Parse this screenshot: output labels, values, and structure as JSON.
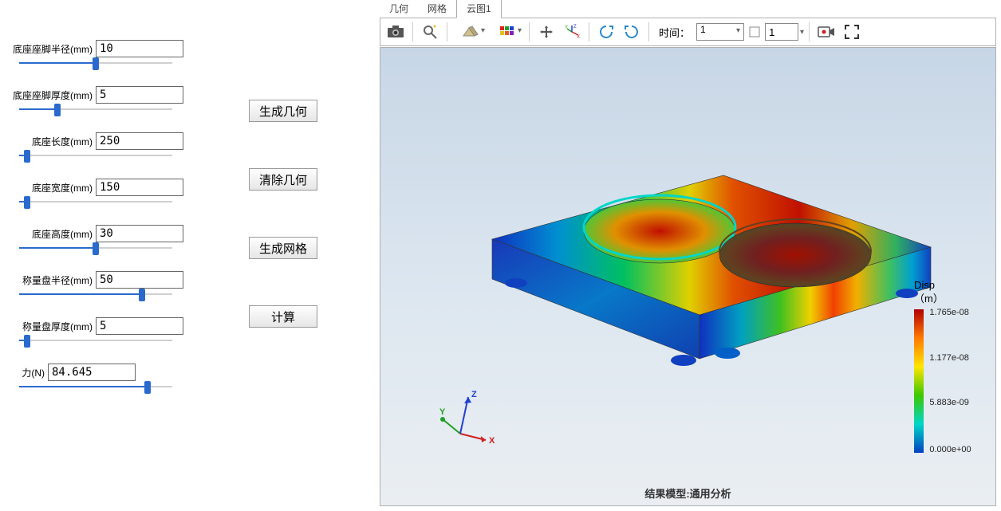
{
  "params": [
    {
      "label": "底座座脚半径(mm)",
      "value": "10",
      "slider_pct": 50
    },
    {
      "label": "底座座脚厚度(mm)",
      "value": "5",
      "slider_pct": 25
    },
    {
      "label": "底座长度(mm)",
      "value": "250",
      "slider_pct": 5
    },
    {
      "label": "底座宽度(mm)",
      "value": "150",
      "slider_pct": 5
    },
    {
      "label": "底座高度(mm)",
      "value": "30",
      "slider_pct": 50
    },
    {
      "label": "称量盘半径(mm)",
      "value": "50",
      "slider_pct": 80
    },
    {
      "label": "称量盘厚度(mm)",
      "value": "5",
      "slider_pct": 5
    },
    {
      "label": "力(N)",
      "value": "84.645",
      "slider_pct": 84
    }
  ],
  "force_label_offset": -60,
  "buttons": {
    "gen_geom": "生成几何",
    "clear_geom": "清除几何",
    "gen_mesh": "生成网格",
    "compute": "计算"
  },
  "tabs": {
    "geom": "几何",
    "mesh": "网格",
    "contour": "云图1"
  },
  "toolbar": {
    "time_label": "时间：",
    "time_value": "1",
    "frame_value": "1"
  },
  "legend": {
    "title1": "Disp",
    "title2": "（m）",
    "ticks": [
      {
        "pos": 0,
        "text": "1.765e-08"
      },
      {
        "pos": 33,
        "text": "1.177e-08"
      },
      {
        "pos": 66,
        "text": "5.883e-09"
      },
      {
        "pos": 100,
        "text": "0.000e+00"
      }
    ]
  },
  "result_label": "结果模型:通用分析",
  "triad": {
    "x": "X",
    "y": "Y",
    "z": "Z"
  },
  "colors": {
    "slider_fill": "#2a6acc",
    "bg_top": "#c7d6e6",
    "bg_bot": "#eaeef2"
  }
}
